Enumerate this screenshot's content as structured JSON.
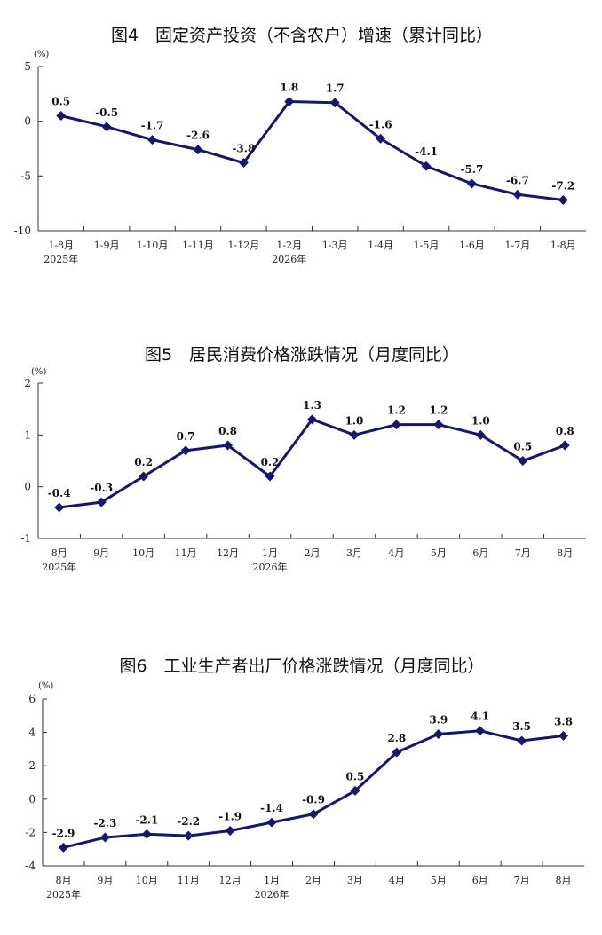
{
  "chart_data": [
    {
      "type": "line",
      "title": "图4　固定资产投资（不含农户）增速（累计同比）",
      "unit": "(%)",
      "categories": [
        "1-8月",
        "1-9月",
        "1-10月",
        "1-11月",
        "1-12月",
        "1-2月",
        "1-3月",
        "1-4月",
        "1-5月",
        "1-6月",
        "1-7月",
        "1-8月"
      ],
      "year_labels": [
        {
          "index": 0,
          "label": "2025年"
        },
        {
          "index": 5,
          "label": "2026年"
        }
      ],
      "values": [
        0.5,
        -0.5,
        -1.7,
        -2.6,
        -3.8,
        1.8,
        1.7,
        -1.6,
        -4.1,
        -5.7,
        -6.7,
        -7.2
      ],
      "data_labels": [
        "0.5",
        "-0.5",
        "-1.7",
        "-2.6",
        "-3.8",
        "1.8",
        "1.7",
        "-1.6",
        "-4.1",
        "-5.7",
        "-6.7",
        "-7.2"
      ],
      "yticks": [
        5,
        0,
        -5,
        -10
      ],
      "ytick_labels": [
        "5",
        "0",
        "-5",
        "-10"
      ],
      "ylim": [
        -10,
        5
      ],
      "color": "#16166b",
      "grid": false
    },
    {
      "type": "line",
      "title": "图5　居民消费价格涨跌情况（月度同比）",
      "unit": "(%)",
      "categories": [
        "8月",
        "9月",
        "10月",
        "11月",
        "12月",
        "1月",
        "2月",
        "3月",
        "4月",
        "5月",
        "6月",
        "7月",
        "8月"
      ],
      "year_labels": [
        {
          "index": 0,
          "label": "2025年"
        },
        {
          "index": 5,
          "label": "2026年"
        }
      ],
      "values": [
        -0.4,
        -0.3,
        0.2,
        0.7,
        0.8,
        0.2,
        1.3,
        1.0,
        1.2,
        1.2,
        1.0,
        0.5,
        0.8
      ],
      "data_labels": [
        "-0.4",
        "-0.3",
        "0.2",
        "0.7",
        "0.8",
        "0.2",
        "1.3",
        "1.0",
        "1.2",
        "1.2",
        "1.0",
        "0.5",
        "0.8"
      ],
      "yticks": [
        2,
        1,
        0,
        -1
      ],
      "ytick_labels": [
        "2",
        "1",
        "0",
        "-1"
      ],
      "ylim": [
        -1,
        2
      ],
      "color": "#16166b",
      "grid": false
    },
    {
      "type": "line",
      "title": "图6　工业生产者出厂价格涨跌情况（月度同比）",
      "unit": "(%)",
      "categories": [
        "8月",
        "9月",
        "10月",
        "11月",
        "12月",
        "1月",
        "2月",
        "3月",
        "4月",
        "5月",
        "6月",
        "7月",
        "8月"
      ],
      "year_labels": [
        {
          "index": 0,
          "label": "2025年"
        },
        {
          "index": 5,
          "label": "2026年"
        }
      ],
      "values": [
        -2.9,
        -2.3,
        -2.1,
        -2.2,
        -1.9,
        -1.4,
        -0.9,
        0.5,
        2.8,
        3.9,
        4.1,
        3.5,
        3.8
      ],
      "data_labels": [
        "-2.9",
        "-2.3",
        "-2.1",
        "-2.2",
        "-1.9",
        "-1.4",
        "-0.9",
        "0.5",
        "2.8",
        "3.9",
        "4.1",
        "3.5",
        "3.8"
      ],
      "yticks": [
        6,
        4,
        2,
        0,
        -2,
        -4
      ],
      "ytick_labels": [
        "6",
        "4",
        "2",
        "0",
        "-2",
        "-4"
      ],
      "ylim": [
        -4,
        6
      ],
      "color": "#16166b",
      "grid": false
    }
  ]
}
